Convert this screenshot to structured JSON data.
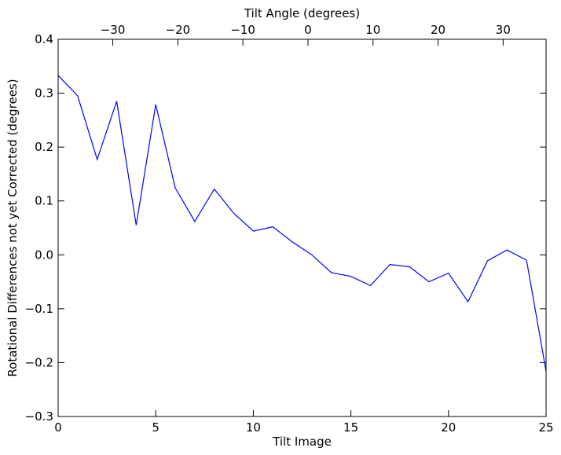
{
  "chart_data": {
    "type": "line",
    "title": "",
    "xlabel": "Tilt Image",
    "ylabel": "Rotational Differences not yet Corrected (degrees)",
    "top_xlabel": "Tilt Angle (degrees)",
    "xlim": [
      0,
      25
    ],
    "ylim": [
      -0.3,
      0.4
    ],
    "top_xlim": [
      -38.4,
      36.6
    ],
    "grid": false,
    "x_ticks": [
      0,
      5,
      10,
      15,
      20,
      25
    ],
    "x_tick_labels": [
      "0",
      "5",
      "10",
      "15",
      "20",
      "25"
    ],
    "y_ticks": [
      0.4,
      0.3,
      0.2,
      0.1,
      0.0,
      -0.1,
      -0.2,
      -0.3
    ],
    "y_tick_labels": [
      "0.4",
      "0.3",
      "0.2",
      "0.1",
      "0.0",
      "−0.1",
      "−0.2",
      "−0.3"
    ],
    "top_ticks": [
      -30,
      -20,
      -10,
      0,
      10,
      20,
      30
    ],
    "top_tick_labels": [
      "−30",
      "−20",
      "−10",
      "0",
      "10",
      "20",
      "30"
    ],
    "series": [
      {
        "color": "#0000ff",
        "x": [
          0,
          1,
          2,
          3,
          4,
          5,
          6,
          7,
          8,
          9,
          10,
          11,
          12,
          13,
          14,
          15,
          16,
          17,
          18,
          19,
          20,
          21,
          22,
          23,
          24,
          25
        ],
        "values": [
          0.333,
          0.295,
          0.177,
          0.285,
          0.055,
          0.279,
          0.124,
          0.062,
          0.122,
          0.077,
          0.044,
          0.052,
          0.024,
          0.0,
          -0.033,
          -0.04,
          -0.057,
          -0.018,
          -0.022,
          -0.05,
          -0.034,
          -0.087,
          -0.011,
          0.009,
          -0.01,
          -0.216
        ]
      }
    ]
  }
}
